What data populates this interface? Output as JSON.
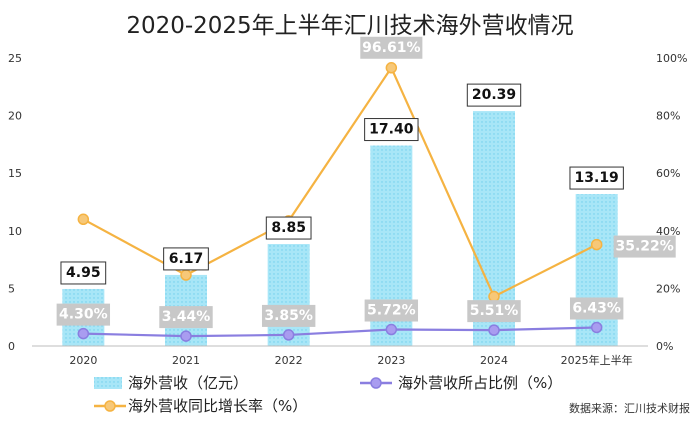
{
  "chart_data": {
    "type": "bar",
    "title": "2020-2025年上半年汇川技术海外营收情况",
    "categories": [
      "2020",
      "2021",
      "2022",
      "2023",
      "2024",
      "2025年上半年"
    ],
    "series": [
      {
        "name": "海外营收（亿元）",
        "type": "bar",
        "axis": "left",
        "values": [
          4.95,
          6.17,
          8.85,
          17.4,
          20.39,
          13.19
        ],
        "labels": [
          "4.95",
          "6.17",
          "8.85",
          "17.40",
          "20.39",
          "13.19"
        ],
        "color": "#a8e6f7"
      },
      {
        "name": "海外营收同比增长率（%）",
        "type": "line",
        "axis": "right",
        "values": [
          44.0,
          24.65,
          43.43,
          96.61,
          17.18,
          35.22
        ],
        "labels": [
          null,
          null,
          null,
          "96.61%",
          null,
          "35.22%"
        ],
        "color": "#f5b342"
      },
      {
        "name": "海外营收所占比例（%）",
        "type": "line",
        "axis": "right",
        "values": [
          4.3,
          3.44,
          3.85,
          5.72,
          5.51,
          6.43
        ],
        "labels": [
          "4.30%",
          "3.44%",
          "3.85%",
          "5.72%",
          "5.51%",
          "6.43%"
        ],
        "color": "#8a7ee0"
      }
    ],
    "y_left": {
      "min": 0,
      "max": 25,
      "ticks": [
        0,
        5,
        10,
        15,
        20,
        25
      ],
      "tick_labels": [
        "0",
        "5",
        "10",
        "15",
        "20",
        "25"
      ]
    },
    "y_right": {
      "min": 0,
      "max": 100,
      "ticks": [
        0,
        20,
        40,
        60,
        80,
        100
      ],
      "tick_labels": [
        "0%",
        "20%",
        "40%",
        "60%",
        "80%",
        "100%"
      ]
    },
    "grid": false,
    "legend_position": "bottom",
    "source": "数据来源：汇川技术财报"
  },
  "colors": {
    "bar_fill": "#a8e6f7",
    "bar_dot": "#6fcfec",
    "growth_line": "#f5b342",
    "share_line": "#8a7ee0",
    "share_marker": "#a99cf0",
    "label_bg": "#c8c8c8",
    "axis_text": "#333333"
  }
}
